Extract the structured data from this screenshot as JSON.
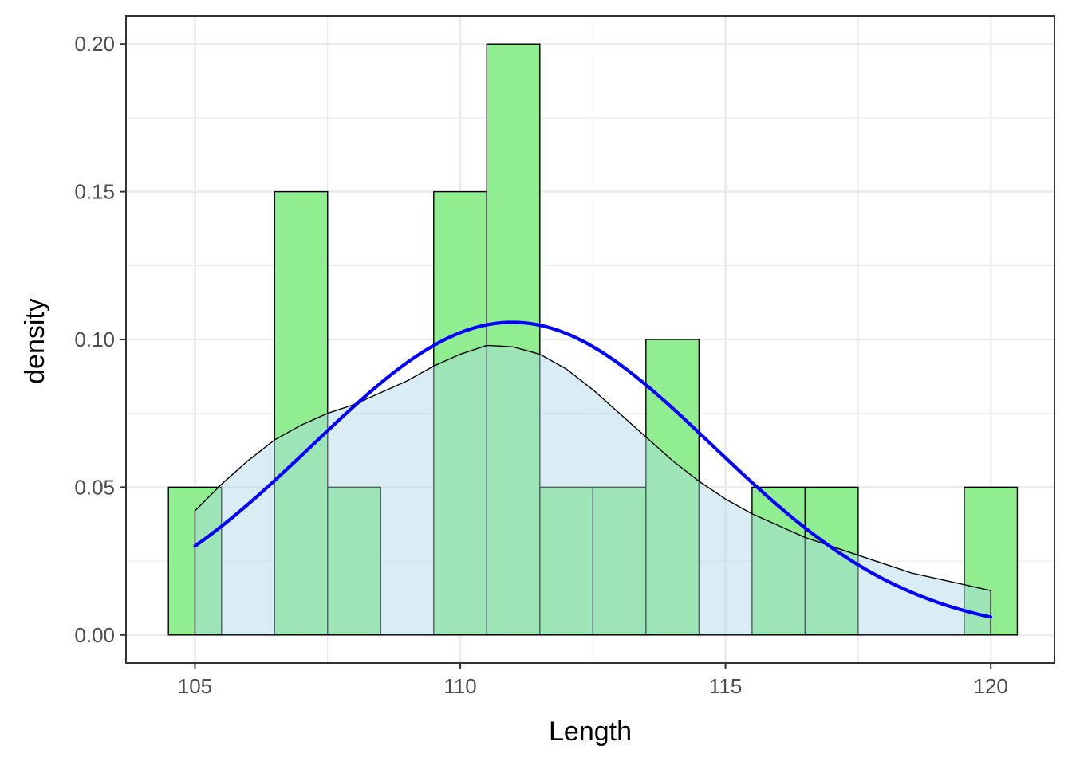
{
  "chart_data": {
    "type": "bar",
    "xlabel": "Length",
    "ylabel": "density",
    "xlim": [
      103.7,
      121.2
    ],
    "ylim": [
      -0.0095,
      0.2095
    ],
    "x_ticks": [
      105,
      110,
      115,
      120
    ],
    "x_tick_labels": [
      "105",
      "110",
      "115",
      "120"
    ],
    "y_ticks": [
      0,
      0.05,
      0.1,
      0.15,
      0.2
    ],
    "y_tick_labels": [
      "0.00",
      "0.05",
      "0.10",
      "0.15",
      "0.20"
    ],
    "grid": true,
    "histogram": {
      "bin_width": 1,
      "fill": "#90EE90",
      "stroke": "#000000",
      "bins": [
        {
          "x": 105,
          "density": 0.05
        },
        {
          "x": 106,
          "density": 0.0
        },
        {
          "x": 107,
          "density": 0.15
        },
        {
          "x": 108,
          "density": 0.05
        },
        {
          "x": 109,
          "density": 0.0
        },
        {
          "x": 110,
          "density": 0.15
        },
        {
          "x": 111,
          "density": 0.2
        },
        {
          "x": 112,
          "density": 0.05
        },
        {
          "x": 113,
          "density": 0.05
        },
        {
          "x": 114,
          "density": 0.1
        },
        {
          "x": 115,
          "density": 0.0
        },
        {
          "x": 116,
          "density": 0.05
        },
        {
          "x": 117,
          "density": 0.05
        },
        {
          "x": 118,
          "density": 0.0
        },
        {
          "x": 119,
          "density": 0.0
        },
        {
          "x": 120,
          "density": 0.05
        }
      ]
    },
    "density_area": {
      "fill": "#ADD8E6",
      "fill_opacity": 0.45,
      "stroke": "#000000",
      "points": [
        [
          105.0,
          0.042
        ],
        [
          105.5,
          0.051
        ],
        [
          106.0,
          0.059
        ],
        [
          106.5,
          0.066
        ],
        [
          107.0,
          0.071
        ],
        [
          107.5,
          0.075
        ],
        [
          108.0,
          0.078
        ],
        [
          108.5,
          0.082
        ],
        [
          109.0,
          0.086
        ],
        [
          109.5,
          0.091
        ],
        [
          110.0,
          0.095
        ],
        [
          110.5,
          0.098
        ],
        [
          111.0,
          0.0975
        ],
        [
          111.5,
          0.095
        ],
        [
          112.0,
          0.09
        ],
        [
          112.5,
          0.083
        ],
        [
          113.0,
          0.075
        ],
        [
          113.5,
          0.067
        ],
        [
          114.0,
          0.059
        ],
        [
          114.5,
          0.052
        ],
        [
          115.0,
          0.046
        ],
        [
          115.5,
          0.041
        ],
        [
          116.0,
          0.037
        ],
        [
          116.5,
          0.033
        ],
        [
          117.0,
          0.03
        ],
        [
          117.5,
          0.027
        ],
        [
          118.0,
          0.024
        ],
        [
          118.5,
          0.021
        ],
        [
          119.0,
          0.019
        ],
        [
          119.5,
          0.017
        ],
        [
          120.0,
          0.015
        ]
      ]
    },
    "normal_curve": {
      "color": "#0000FF",
      "mean": 110.98,
      "sd": 3.77
    }
  }
}
